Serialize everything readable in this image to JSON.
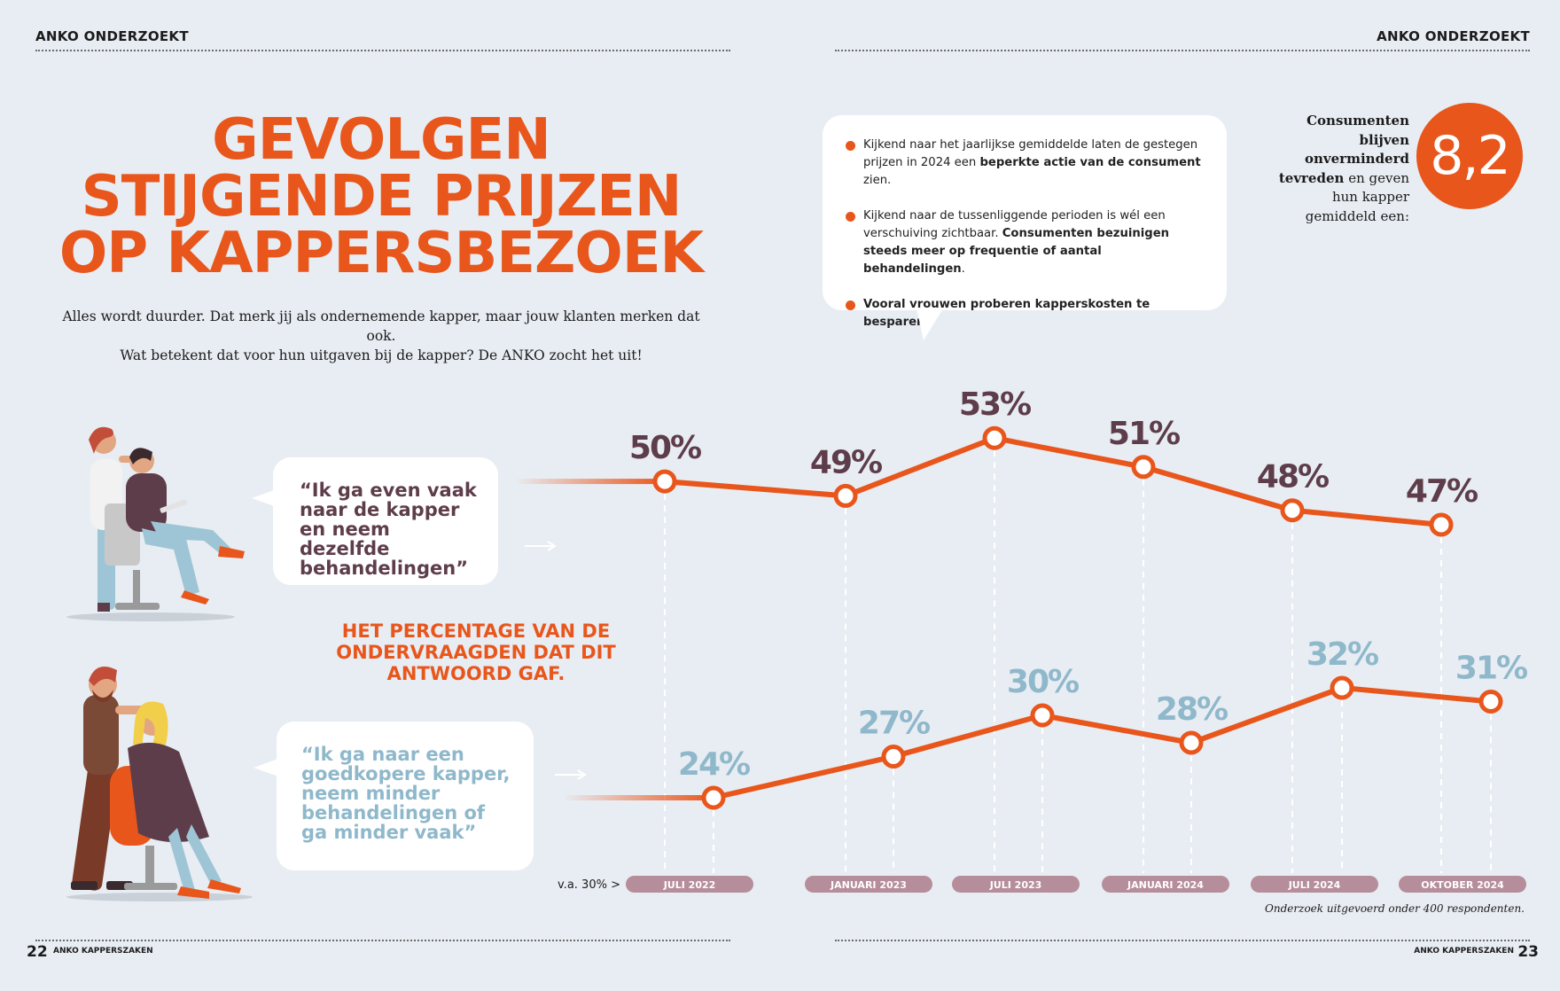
{
  "header": {
    "left": "ANKO ONDERZOEKT",
    "right": "ANKO ONDERZOEKT"
  },
  "title": {
    "line1": "GEVOLGEN",
    "line2": "STIJGENDE PRIJZEN",
    "line3": "OP KAPPERSBEZOEK"
  },
  "intro": {
    "line1": "Alles wordt duurder. Dat merk jij als ondernemende kapper, maar jouw klanten merken dat ook.",
    "line2": "Wat betekent dat voor hun uitgaven bij de kapper? De ANKO zocht het uit!"
  },
  "bullets": {
    "b1_a": "Kijkend naar het jaarlijkse gemiddelde laten de gestegen prijzen in 2024 een ",
    "b1_bold": "beperkte actie van de consument",
    "b1_c": " zien.",
    "b2_a": "Kijkend naar de tussenliggende perioden is wél een verschuiving zichtbaar. ",
    "b2_bold": "Consumenten bezuinigen steeds meer op frequentie of aantal behandelingen",
    "b2_c": ".",
    "b3_bold": "Vooral vrouwen proberen kapperskosten te besparen",
    "b3_c": "."
  },
  "satisfaction": {
    "bold1": "Consumenten blijven onverminderd tevreden",
    "rest1": " en geven hun kapper gemiddeld een:",
    "score": "8,2"
  },
  "quotes": {
    "q1": "“Ik ga even vaak naar de kapper en neem dezelfde behandelingen”",
    "q2": "“Ik ga naar een goedkopere kapper, neem minder behandelingen of ga minder vaak”"
  },
  "percentage_title": "HET PERCENTAGE VAN DE ONDERVRAAGDEN DAT DIT ANTWOORD GAF.",
  "axis_prefix": "v.a. 30% >",
  "footer": {
    "note": "Onderzoek uitgevoerd onder 400 respondenten.",
    "left_num": "22",
    "left_label": "ANKO KAPPERSZAKEN",
    "right_label": "ANKO KAPPERSZAKEN",
    "right_num": "23"
  },
  "colors": {
    "orange": "#e8561c",
    "plum": "#5e3d4a",
    "lightblue": "#8fb8cb",
    "tag": "#b68d9a"
  },
  "chart_data": {
    "type": "line",
    "categories": [
      "JULI 2022",
      "JANUARI 2023",
      "JULI 2023",
      "JANUARI 2024",
      "JULI 2024",
      "OKTOBER 2024"
    ],
    "series": [
      {
        "values": [
          50,
          49,
          53,
          51,
          48,
          47
        ],
        "labels": [
          "50%",
          "49%",
          "53%",
          "51%",
          "48%",
          "47%"
        ]
      },
      {
        "values": [
          24,
          27,
          30,
          28,
          32,
          31
        ],
        "labels": [
          "24%",
          "27%",
          "30%",
          "28%",
          "32%",
          "31%"
        ]
      }
    ],
    "title": "HET PERCENTAGE VAN DE ONDERVRAAGDEN DAT DIT ANTWOORD GAF.",
    "grid": false
  }
}
